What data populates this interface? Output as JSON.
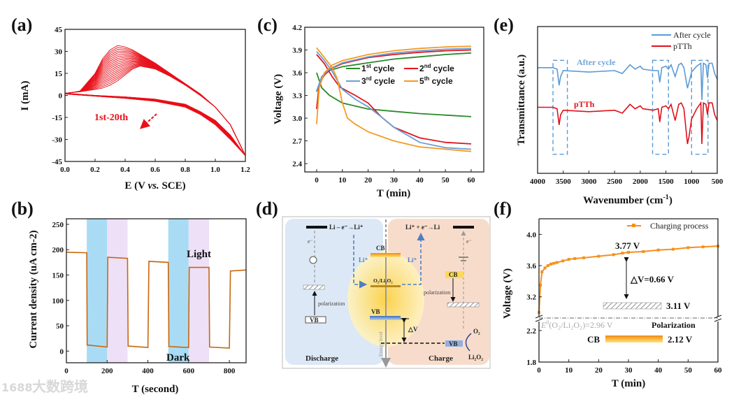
{
  "watermark": {
    "text": "大数跨境",
    "logo": "1688"
  },
  "panel_labels": {
    "a": "(a)",
    "b": "(b)",
    "c": "(c)",
    "d": "(d)",
    "e": "(e)",
    "f": "(f)"
  },
  "colors": {
    "cv": "#e8101a",
    "jt": "#c8660c",
    "band_blue": "#a9dcf4",
    "band_purple": "#eee0f7",
    "green": "#2a8a2a",
    "red": "#e0141e",
    "blue": "#6a9fd4",
    "orange": "#f59a23",
    "ftir_blue": "#5b9bd5",
    "ftir_red": "#e0101a",
    "charge": "#f5901e"
  },
  "chart_data": [
    {
      "id": "a",
      "type": "line",
      "title": "",
      "xlabel": "E (V vs. SCE)",
      "xlabel_parts": [
        "E (V ",
        "vs.",
        " SCE)"
      ],
      "ylabel": "I (mA)",
      "xlim": [
        0,
        1.2
      ],
      "ylim": [
        -45,
        45
      ],
      "xticks": [
        "0.0",
        "0.2",
        "0.4",
        "0.6",
        "0.8",
        "1.0",
        "1.2"
      ],
      "yticks": [
        "-45",
        "-30",
        "-15",
        "0",
        "15",
        "30",
        "45"
      ],
      "cycles": 20,
      "annotation": "1st-20th",
      "forward_E": [
        0,
        0.1,
        0.2,
        0.25,
        0.3,
        0.35,
        0.4,
        0.45,
        0.5,
        0.6,
        0.7,
        0.8,
        0.9,
        1.0,
        1.1,
        1.2
      ],
      "cycle1_forward_I": [
        1,
        3,
        15,
        25,
        31,
        34,
        33,
        31,
        28,
        22,
        15,
        8,
        1,
        -8,
        -20,
        -41
      ],
      "cycle20_forward_I": [
        1.5,
        2.5,
        4,
        5,
        7,
        10,
        14,
        18,
        20,
        18,
        13,
        7,
        0,
        -8,
        -20,
        -41
      ],
      "reverse_E": [
        1.2,
        1.1,
        1.0,
        0.9,
        0.8,
        0.6,
        0.4,
        0.2,
        0
      ],
      "cycle1_reverse_I": [
        -41,
        -30,
        -20,
        -13,
        -8,
        -4,
        -2,
        -0.5,
        1
      ],
      "cycle20_reverse_I": [
        -41,
        -27,
        -17,
        -11,
        -6,
        -2.5,
        -1,
        0,
        1.5
      ]
    },
    {
      "id": "b",
      "type": "line",
      "xlabel": "T (second)",
      "ylabel": "Current density (uA cm-2)",
      "ylabel_parts": [
        "Current density (uA cm",
        "-2",
        ")"
      ],
      "xlim": [
        0,
        882
      ],
      "ylim": [
        -23,
        261
      ],
      "xticks": [
        "0",
        "200",
        "400",
        "600",
        "800"
      ],
      "yticks": [
        "0",
        "50",
        "100",
        "150",
        "200",
        "250"
      ],
      "bands": [
        {
          "from": 100,
          "to": 200,
          "kind": "blue"
        },
        {
          "from": 200,
          "to": 300,
          "kind": "purple"
        },
        {
          "from": 500,
          "to": 600,
          "kind": "blue"
        },
        {
          "from": 600,
          "to": 700,
          "kind": "purple"
        }
      ],
      "labels": {
        "light": "Light",
        "dark": "Dark"
      },
      "x": [
        0,
        100,
        102,
        200,
        203,
        300,
        303,
        400,
        405,
        500,
        503,
        600,
        603,
        700,
        703,
        800,
        805,
        882
      ],
      "y": [
        195,
        194,
        12,
        8,
        185,
        183,
        10,
        7,
        177,
        175,
        9,
        7,
        165,
        165,
        8,
        6,
        158,
        160
      ]
    },
    {
      "id": "c",
      "type": "line",
      "xlabel": "T (min)",
      "ylabel": "Voltage (V)",
      "xlim": [
        -4.6,
        64.9
      ],
      "ylim": [
        2.29,
        4.2
      ],
      "xticks": [
        "0",
        "10",
        "20",
        "30",
        "40",
        "50",
        "60"
      ],
      "yticks": [
        "2.4",
        "2.7",
        "3.0",
        "3.3",
        "3.6",
        "3.9",
        "4.2"
      ],
      "series": [
        {
          "num": "1",
          "sup": "st",
          "text": " cycle",
          "color": "#2a8a2a",
          "charge": [
            [
              0,
              3.35
            ],
            [
              2,
              3.55
            ],
            [
              5,
              3.63
            ],
            [
              10,
              3.68
            ],
            [
              20,
              3.73
            ],
            [
              30,
              3.78
            ],
            [
              40,
              3.81
            ],
            [
              50,
              3.84
            ],
            [
              60,
              3.86
            ]
          ],
          "discharge": [
            [
              0,
              3.6
            ],
            [
              2,
              3.4
            ],
            [
              5,
              3.3
            ],
            [
              10,
              3.2
            ],
            [
              20,
              3.12
            ],
            [
              30,
              3.09
            ],
            [
              40,
              3.06
            ],
            [
              50,
              3.04
            ],
            [
              60,
              3.02
            ]
          ]
        },
        {
          "num": "2",
          "sup": "nd",
          "text": " cycle",
          "color": "#e0141e",
          "charge": [
            [
              0,
              3.12
            ],
            [
              1,
              3.45
            ],
            [
              3,
              3.57
            ],
            [
              6,
              3.66
            ],
            [
              10,
              3.72
            ],
            [
              20,
              3.8
            ],
            [
              30,
              3.84
            ],
            [
              40,
              3.87
            ],
            [
              50,
              3.89
            ],
            [
              60,
              3.9
            ]
          ],
          "discharge": [
            [
              0,
              3.84
            ],
            [
              3,
              3.72
            ],
            [
              6,
              3.55
            ],
            [
              9,
              3.41
            ],
            [
              15,
              3.3
            ],
            [
              20,
              3.2
            ],
            [
              25,
              3.02
            ],
            [
              30,
              2.88
            ],
            [
              40,
              2.74
            ],
            [
              50,
              2.68
            ],
            [
              60,
              2.66
            ]
          ]
        },
        {
          "num": "3",
          "sup": "rd",
          "text": " cycle",
          "color": "#6a9fd4",
          "charge": [
            [
              0,
              3.36
            ],
            [
              2,
              3.55
            ],
            [
              5,
              3.65
            ],
            [
              10,
              3.73
            ],
            [
              20,
              3.81
            ],
            [
              30,
              3.86
            ],
            [
              40,
              3.89
            ],
            [
              50,
              3.91
            ],
            [
              60,
              3.92
            ]
          ],
          "discharge": [
            [
              0,
              3.88
            ],
            [
              3,
              3.76
            ],
            [
              6,
              3.62
            ],
            [
              10,
              3.38
            ],
            [
              15,
              3.25
            ],
            [
              20,
              3.15
            ],
            [
              25,
              3.02
            ],
            [
              30,
              2.88
            ],
            [
              40,
              2.68
            ],
            [
              50,
              2.61
            ],
            [
              60,
              2.59
            ]
          ]
        },
        {
          "num": "5",
          "sup": "th",
          "text": " cycle",
          "color": "#f59a23",
          "charge": [
            [
              0,
              2.92
            ],
            [
              1,
              3.4
            ],
            [
              3,
              3.6
            ],
            [
              6,
              3.7
            ],
            [
              10,
              3.76
            ],
            [
              20,
              3.84
            ],
            [
              30,
              3.89
            ],
            [
              40,
              3.92
            ],
            [
              50,
              3.94
            ],
            [
              60,
              3.95
            ]
          ],
          "discharge": [
            [
              0,
              3.93
            ],
            [
              3,
              3.8
            ],
            [
              6,
              3.67
            ],
            [
              8,
              3.52
            ],
            [
              10,
              3.2
            ],
            [
              12,
              3.0
            ],
            [
              15,
              2.92
            ],
            [
              20,
              2.82
            ],
            [
              30,
              2.7
            ],
            [
              40,
              2.62
            ],
            [
              50,
              2.59
            ],
            [
              60,
              2.56
            ]
          ]
        }
      ]
    },
    {
      "id": "e",
      "type": "line",
      "xlabel": "Wavenumber (cm-1)",
      "xlabel_parts": [
        "Wavenumber (cm",
        "-1",
        ")"
      ],
      "ylabel": "Transmittance (a.u.)",
      "xlim": [
        4000,
        500
      ],
      "ylim": [
        0,
        1
      ],
      "xticks": [
        "4000",
        "3500",
        "3000",
        "2500",
        "2000",
        "1500",
        "1000",
        "500"
      ],
      "legend": [
        "After cycle",
        "pTTh"
      ],
      "curve_labels": [
        "After cycle",
        "pTTh"
      ],
      "boxes": [
        [
          3700,
          3420
        ],
        [
          1760,
          1450
        ],
        [
          1000,
          680
        ]
      ],
      "box_range": [
        0.13,
        0.77
      ],
      "series": [
        {
          "name": "After cycle",
          "color": "#5b9bd5",
          "x": [
            4000,
            3700,
            3620,
            3580,
            3550,
            3500,
            3000,
            2500,
            2350,
            2200,
            2100,
            2000,
            1950,
            1750,
            1650,
            1620,
            1580,
            1500,
            1450,
            1400,
            1320,
            1250,
            1200,
            1150,
            1080,
            1050,
            1000,
            900,
            820,
            800,
            770,
            720,
            690,
            660,
            600,
            550,
            500
          ],
          "y": [
            0.72,
            0.72,
            0.71,
            0.6,
            0.66,
            0.7,
            0.69,
            0.7,
            0.68,
            0.74,
            0.71,
            0.73,
            0.71,
            0.7,
            0.7,
            0.62,
            0.72,
            0.73,
            0.71,
            0.74,
            0.66,
            0.74,
            0.75,
            0.72,
            0.58,
            0.62,
            0.69,
            0.73,
            0.75,
            0.5,
            0.75,
            0.74,
            0.65,
            0.75,
            0.75,
            0.68,
            0.64
          ]
        },
        {
          "name": "pTTh",
          "color": "#e0101a",
          "x": [
            4000,
            3700,
            3620,
            3580,
            3550,
            3500,
            3000,
            2500,
            2350,
            2200,
            2100,
            2000,
            1950,
            1750,
            1650,
            1620,
            1580,
            1500,
            1450,
            1400,
            1320,
            1250,
            1200,
            1150,
            1080,
            1050,
            1000,
            900,
            820,
            800,
            770,
            720,
            690,
            660,
            600,
            550,
            500
          ],
          "y": [
            0.45,
            0.45,
            0.44,
            0.33,
            0.4,
            0.43,
            0.42,
            0.43,
            0.41,
            0.47,
            0.44,
            0.46,
            0.44,
            0.43,
            0.44,
            0.35,
            0.45,
            0.46,
            0.44,
            0.47,
            0.36,
            0.47,
            0.48,
            0.44,
            0.2,
            0.25,
            0.37,
            0.44,
            0.48,
            0.2,
            0.48,
            0.47,
            0.4,
            0.48,
            0.48,
            0.4,
            0.36
          ]
        }
      ]
    },
    {
      "id": "f",
      "type": "line",
      "xlabel": "T (min)",
      "ylabel": "Voltage (V)",
      "xlim": [
        0,
        60
      ],
      "ylim_upper": [
        2.92,
        4.2
      ],
      "ylim_lower": [
        1.8,
        2.35
      ],
      "xticks": [
        "0",
        "10",
        "20",
        "30",
        "40",
        "50",
        "60"
      ],
      "yticks_upper": [
        "3.2",
        "3.6",
        "4.0"
      ],
      "yticks_lower": [
        "1.8",
        "2.2"
      ],
      "legend": "Charging process",
      "x": [
        0,
        0.5,
        1,
        2,
        3,
        4,
        5,
        6,
        8,
        10,
        12,
        15,
        20,
        25,
        28,
        30,
        35,
        40,
        45,
        50,
        55,
        60
      ],
      "y": [
        3.0,
        3.35,
        3.52,
        3.57,
        3.6,
        3.62,
        3.63,
        3.64,
        3.66,
        3.68,
        3.69,
        3.7,
        3.72,
        3.74,
        3.76,
        3.77,
        3.78,
        3.8,
        3.81,
        3.83,
        3.84,
        3.85
      ],
      "annotations": {
        "peak": "3.77 V",
        "dv": "△V=0.66 V",
        "polar_level": "3.11 V",
        "eq_pre": "E",
        "eq_sup": "0",
        "eq_text": "(O₂/Li₂O₂)=2.96 V",
        "polarization": "Polarization",
        "cb": "CB",
        "cb_level": "2.12 V"
      },
      "levels": {
        "polarization_V": 3.11,
        "equilibrium_V": 2.96,
        "cb_V": 2.12,
        "peak_V": 3.77
      }
    }
  ],
  "diagram": {
    "discharge_reaction": "Li – e⁻→Li⁺",
    "charge_reaction": "Li⁺ + e⁻→Li",
    "e_left": "e⁻",
    "e_right": "e⁻",
    "cb": "CB",
    "li_left": "Li⁺",
    "li_right": "Li⁺",
    "o2_li2o2": "O₂/Li₂O₂",
    "vb": "VB",
    "polarization_left": "polarization",
    "polarization_right": "polarization",
    "vb_left": "VB",
    "cb_right": "CB",
    "vb_right": "VB",
    "delta_v": "△V",
    "o2": "O₂",
    "li2o2": "Li₂O₂",
    "discharge": "Discharge",
    "charge": "Charge",
    "energy_level": "Energy level"
  }
}
